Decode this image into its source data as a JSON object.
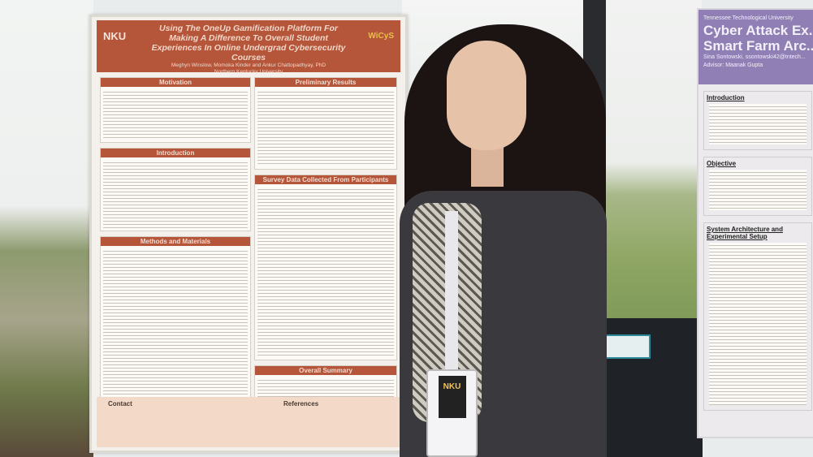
{
  "poster_left": {
    "title": "Using The OneUp Gamification Platform For Making A Difference To Overall Student Experiences In Online Undergrad Cybersecurity Courses",
    "authors": "Meghyn Winslow, Momoka Kinder and Ankur Chattopadhyay, PhD",
    "affiliation": "Northern Kentucky University",
    "logo_left": "NKU",
    "logo_right": "WiCyS",
    "sections_left": [
      "Motivation",
      "Introduction",
      "Methods and Materials"
    ],
    "sections_right": [
      "Preliminary Results",
      "Survey Data Collected From Participants",
      "Overall Summary"
    ],
    "contact_heading": "Contact",
    "references_heading": "References"
  },
  "poster_right": {
    "university": "Tennessee Technological University",
    "title": "Cyber Attack Ex... Smart Farm Arc...",
    "author": "Sina Sontowski, ssontowski42@tntech...",
    "advisor": "Advisor: Maanak Gupta",
    "sections": [
      "Introduction",
      "Objective",
      "System Architecture and Experimental Setup"
    ]
  },
  "badge": {
    "logo": "NKU"
  }
}
